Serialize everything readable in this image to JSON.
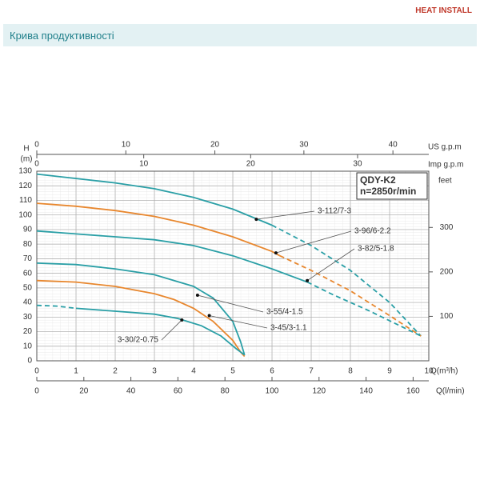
{
  "header": {
    "title": "Крива продуктивності",
    "logo": "HEAT INSTALL"
  },
  "chart_data": {
    "type": "line",
    "box_title": "QDY-K2",
    "box_subtitle": "n=2850r/min",
    "xlabel": "Q(m³/h)",
    "xlim": [
      0,
      10
    ],
    "xticks": [
      0,
      1,
      2,
      3,
      4,
      5,
      6,
      7,
      8,
      9,
      10
    ],
    "ylabel": "H",
    "ylabel_unit": "(m)",
    "ylim": [
      0,
      130
    ],
    "yticks": [
      0,
      10,
      20,
      30,
      40,
      50,
      60,
      70,
      80,
      90,
      100,
      110,
      120,
      130
    ],
    "y2label": "feet",
    "y2lim": [
      0,
      426.5
    ],
    "y2ticks": [
      100,
      200,
      300
    ],
    "x_us_gpm": {
      "label": "US g.p.m",
      "lim": [
        0,
        44.03
      ],
      "ticks": [
        0,
        10,
        20,
        30,
        40
      ]
    },
    "x_imp_gpm": {
      "label": "Imp g.p.m",
      "lim": [
        0,
        36.66
      ],
      "ticks": [
        0,
        10,
        20,
        30
      ]
    },
    "x_lpm": {
      "label": "Q(l/min)",
      "lim": [
        0,
        166.67
      ],
      "ticks": [
        0,
        20,
        40,
        60,
        80,
        100,
        120,
        140,
        160
      ]
    },
    "grid": true,
    "series": [
      {
        "name": "3-112/7-3",
        "color": "#2a9fa6",
        "x": [
          0,
          1,
          2,
          3,
          4,
          5,
          6
        ],
        "values": [
          128,
          125,
          122,
          118,
          112,
          104,
          93
        ],
        "dashed_x": [
          6,
          7,
          8,
          9,
          9.8
        ],
        "dashed_values": [
          93,
          79,
          62,
          40,
          17
        ],
        "marker_x": 5.6,
        "marker_value": 97
      },
      {
        "name": "3-96/6-2.2",
        "color": "#e8872e",
        "x": [
          0,
          1,
          2,
          3,
          4,
          5,
          6,
          6.2
        ],
        "values": [
          108,
          106,
          103,
          99,
          93,
          85,
          75,
          72
        ],
        "dashed_x": [
          6.2,
          7,
          8,
          9,
          9.8
        ],
        "dashed_values": [
          72,
          62,
          48,
          31,
          17
        ],
        "marker_x": 6.1,
        "marker_value": 74
      },
      {
        "name": "3-82/5-1.8",
        "color": "#2a9fa6",
        "x": [
          0,
          1,
          2,
          3,
          4,
          5,
          6,
          6.9
        ],
        "values": [
          89,
          87,
          85,
          83,
          79,
          72,
          63,
          54
        ],
        "dashed_x": [
          6.9,
          7.5,
          8.5,
          9.8
        ],
        "dashed_values": [
          54,
          46,
          34,
          17
        ],
        "marker_x": 6.9,
        "marker_value": 55
      },
      {
        "name": "3-55/4-1.5",
        "color": "#2a9fa6",
        "x": [
          0,
          1,
          2,
          3,
          4,
          4.5,
          5,
          5.2,
          5.3
        ],
        "values": [
          67,
          66,
          63,
          59,
          51,
          43,
          27,
          13,
          4
        ],
        "dashed_x": [],
        "dashed_values": [],
        "marker_x": 4.1,
        "marker_value": 45
      },
      {
        "name": "3-45/3-1.1",
        "color": "#e8872e",
        "x": [
          0,
          1,
          2,
          3,
          3.5,
          4,
          4.5,
          5,
          5.2,
          5.3
        ],
        "values": [
          55,
          54,
          51,
          46,
          42,
          36,
          27,
          14,
          6,
          3
        ],
        "dashed_x": [],
        "dashed_values": [],
        "marker_x": 4.4,
        "marker_value": 31
      },
      {
        "name": "3-30/2-0.75",
        "color": "#2a9fa6",
        "x": [
          1,
          2,
          3,
          3.6,
          4.2,
          4.7,
          5.1,
          5.3
        ],
        "values": [
          36,
          34,
          32,
          29,
          24,
          17,
          8,
          4
        ],
        "dashed_x": [
          0,
          0.5,
          1
        ],
        "dashed_values": [
          38,
          37.5,
          36
        ],
        "marker_x": 3.7,
        "marker_value": 28
      }
    ]
  }
}
